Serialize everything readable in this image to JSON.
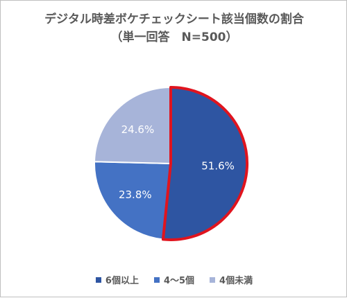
{
  "chart_data": {
    "type": "pie",
    "title": "デジタル時差ボケチェックシート該当個数の割合",
    "subtitle": "（単一回答　N=500）",
    "categories": [
      "6個以上",
      "4～5個",
      "4個未満"
    ],
    "values": [
      51.6,
      23.8,
      24.6
    ],
    "labels": [
      "51.6%",
      "23.8%",
      "24.6%"
    ],
    "colors": [
      "#2e55a2",
      "#4472c4",
      "#a7b4d9"
    ],
    "highlight_color": "#e0141e",
    "legend_position": "bottom"
  }
}
